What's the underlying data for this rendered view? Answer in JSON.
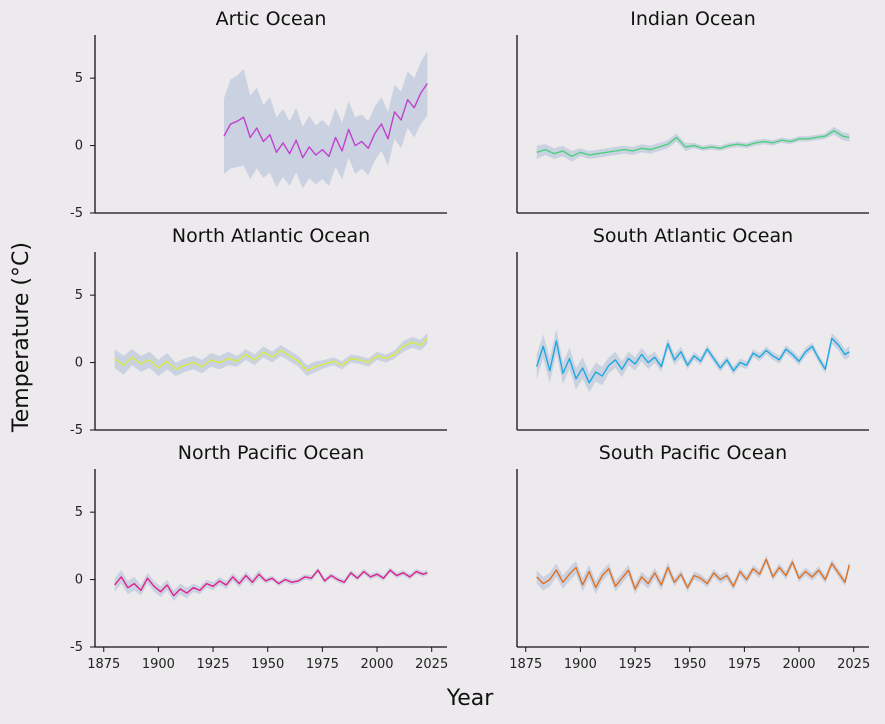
{
  "figure": {
    "xlabel": "Year",
    "ylabel": "Temperature (°C)",
    "background": "#ECEAEC",
    "band_color": "#B8C4DC",
    "xticks": [
      1875,
      1900,
      1925,
      1950,
      1975,
      2000,
      2025
    ],
    "yticks": [
      -5,
      0,
      5
    ]
  },
  "chart_data": [
    {
      "type": "line",
      "title": "Artic Ocean",
      "color": "#C040D0",
      "xlim": [
        1871,
        2032
      ],
      "ylim": [
        -5,
        8.2
      ],
      "series": [
        {
          "x": [
            1930,
            1933,
            1936,
            1939,
            1942,
            1945,
            1948,
            1951,
            1954,
            1957,
            1960,
            1963,
            1966,
            1969,
            1972,
            1975,
            1978,
            1981,
            1984,
            1987,
            1990,
            1993,
            1996,
            1999,
            2002,
            2005,
            2008,
            2011,
            2014,
            2017,
            2020,
            2023
          ],
          "y": [
            0.7,
            1.6,
            1.8,
            2.1,
            0.6,
            1.3,
            0.3,
            0.8,
            -0.5,
            0.2,
            -0.6,
            0.4,
            -0.9,
            -0.1,
            -0.7,
            -0.3,
            -0.8,
            0.6,
            -0.4,
            1.2,
            0.0,
            0.3,
            -0.2,
            0.9,
            1.6,
            0.5,
            2.5,
            1.9,
            3.4,
            2.8,
            3.9,
            4.6
          ],
          "band": [
            2.8,
            3.3,
            3.4,
            3.6,
            3.1,
            3.0,
            2.7,
            2.8,
            2.6,
            2.5,
            2.4,
            2.4,
            2.3,
            2.3,
            2.2,
            2.2,
            2.2,
            2.2,
            2.1,
            2.1,
            2.1,
            2.0,
            2.0,
            2.0,
            2.0,
            2.0,
            2.0,
            2.1,
            2.1,
            2.2,
            2.3,
            2.4
          ]
        }
      ]
    },
    {
      "type": "line",
      "title": "Indian Ocean",
      "color": "#4CD080",
      "xlim": [
        1871,
        2032
      ],
      "ylim": [
        -5,
        8.2
      ],
      "series": [
        {
          "x": [
            1880,
            1884,
            1888,
            1892,
            1896,
            1900,
            1904,
            1908,
            1912,
            1916,
            1920,
            1924,
            1928,
            1932,
            1936,
            1940,
            1944,
            1948,
            1952,
            1956,
            1960,
            1964,
            1968,
            1972,
            1976,
            1980,
            1984,
            1988,
            1992,
            1996,
            2000,
            2004,
            2008,
            2012,
            2016,
            2020,
            2023
          ],
          "y": [
            -0.5,
            -0.3,
            -0.6,
            -0.4,
            -0.8,
            -0.5,
            -0.7,
            -0.6,
            -0.5,
            -0.4,
            -0.3,
            -0.4,
            -0.2,
            -0.3,
            -0.1,
            0.1,
            0.6,
            -0.1,
            0.0,
            -0.2,
            -0.1,
            -0.2,
            0.0,
            0.1,
            0.0,
            0.2,
            0.3,
            0.2,
            0.4,
            0.3,
            0.5,
            0.5,
            0.6,
            0.7,
            1.1,
            0.7,
            0.6
          ],
          "band": [
            0.5,
            0.4,
            0.4,
            0.4,
            0.4,
            0.3,
            0.3,
            0.3,
            0.3,
            0.3,
            0.3,
            0.3,
            0.3,
            0.3,
            0.3,
            0.3,
            0.3,
            0.3,
            0.2,
            0.2,
            0.2,
            0.2,
            0.2,
            0.2,
            0.2,
            0.2,
            0.2,
            0.2,
            0.2,
            0.2,
            0.2,
            0.2,
            0.2,
            0.2,
            0.3,
            0.3,
            0.3
          ]
        }
      ]
    },
    {
      "type": "line",
      "title": "North Atlantic Ocean",
      "color": "#D8EC40",
      "xlim": [
        1871,
        2032
      ],
      "ylim": [
        -5,
        8.2
      ],
      "series": [
        {
          "x": [
            1880,
            1884,
            1888,
            1892,
            1896,
            1900,
            1904,
            1908,
            1912,
            1916,
            1920,
            1924,
            1928,
            1932,
            1936,
            1940,
            1944,
            1948,
            1952,
            1956,
            1960,
            1964,
            1968,
            1972,
            1976,
            1980,
            1984,
            1988,
            1992,
            1996,
            2000,
            2004,
            2008,
            2012,
            2016,
            2020,
            2023
          ],
          "y": [
            0.3,
            -0.2,
            0.4,
            -0.1,
            0.2,
            -0.4,
            0.1,
            -0.5,
            -0.2,
            0.0,
            -0.3,
            0.2,
            0.0,
            0.3,
            0.1,
            0.6,
            0.2,
            0.8,
            0.4,
            0.9,
            0.5,
            0.1,
            -0.6,
            -0.3,
            -0.1,
            0.1,
            -0.2,
            0.3,
            0.2,
            0.0,
            0.5,
            0.3,
            0.6,
            1.2,
            1.5,
            1.3,
            1.8
          ],
          "band": [
            0.7,
            0.7,
            0.6,
            0.6,
            0.6,
            0.6,
            0.6,
            0.5,
            0.5,
            0.5,
            0.5,
            0.5,
            0.5,
            0.5,
            0.4,
            0.4,
            0.4,
            0.4,
            0.4,
            0.4,
            0.4,
            0.4,
            0.4,
            0.4,
            0.3,
            0.3,
            0.3,
            0.3,
            0.3,
            0.3,
            0.3,
            0.3,
            0.3,
            0.4,
            0.4,
            0.4,
            0.4
          ]
        }
      ]
    },
    {
      "type": "line",
      "title": "South Atlantic Ocean",
      "color": "#1CA8E0",
      "xlim": [
        1871,
        2032
      ],
      "ylim": [
        -5,
        8.2
      ],
      "series": [
        {
          "x": [
            1880,
            1883,
            1886,
            1889,
            1892,
            1895,
            1898,
            1901,
            1904,
            1907,
            1910,
            1913,
            1916,
            1919,
            1922,
            1925,
            1928,
            1931,
            1934,
            1937,
            1940,
            1943,
            1946,
            1949,
            1952,
            1955,
            1958,
            1961,
            1964,
            1967,
            1970,
            1973,
            1976,
            1979,
            1982,
            1985,
            1988,
            1991,
            1994,
            1997,
            2000,
            2003,
            2006,
            2009,
            2012,
            2015,
            2018,
            2021,
            2023
          ],
          "y": [
            -0.3,
            1.2,
            -0.6,
            1.6,
            -0.8,
            0.3,
            -1.2,
            -0.4,
            -1.5,
            -0.7,
            -1.0,
            -0.2,
            0.2,
            -0.5,
            0.3,
            -0.1,
            0.6,
            0.0,
            0.4,
            -0.3,
            1.4,
            0.2,
            0.8,
            -0.2,
            0.5,
            0.1,
            1.0,
            0.3,
            -0.4,
            0.2,
            -0.6,
            0.0,
            -0.2,
            0.7,
            0.4,
            0.9,
            0.5,
            0.2,
            1.0,
            0.6,
            0.1,
            0.8,
            1.2,
            0.3,
            -0.5,
            1.8,
            1.3,
            0.6,
            0.8
          ],
          "band": [
            0.9,
            0.9,
            0.9,
            0.9,
            0.8,
            0.8,
            0.8,
            0.8,
            0.7,
            0.7,
            0.7,
            0.6,
            0.6,
            0.6,
            0.5,
            0.5,
            0.5,
            0.5,
            0.4,
            0.4,
            0.4,
            0.4,
            0.4,
            0.3,
            0.3,
            0.3,
            0.3,
            0.3,
            0.3,
            0.3,
            0.3,
            0.3,
            0.3,
            0.3,
            0.3,
            0.3,
            0.3,
            0.3,
            0.3,
            0.3,
            0.3,
            0.3,
            0.3,
            0.3,
            0.3,
            0.4,
            0.4,
            0.4,
            0.4
          ]
        }
      ]
    },
    {
      "type": "line",
      "title": "North Pacific Ocean",
      "color": "#E0208C",
      "xlim": [
        1871,
        2032
      ],
      "ylim": [
        -5,
        8.2
      ],
      "series": [
        {
          "x": [
            1880,
            1883,
            1886,
            1889,
            1892,
            1895,
            1898,
            1901,
            1904,
            1907,
            1910,
            1913,
            1916,
            1919,
            1922,
            1925,
            1928,
            1931,
            1934,
            1937,
            1940,
            1943,
            1946,
            1949,
            1952,
            1955,
            1958,
            1961,
            1964,
            1967,
            1970,
            1973,
            1976,
            1979,
            1982,
            1985,
            1988,
            1991,
            1994,
            1997,
            2000,
            2003,
            2006,
            2009,
            2012,
            2015,
            2018,
            2021,
            2023
          ],
          "y": [
            -0.4,
            0.2,
            -0.6,
            -0.3,
            -0.8,
            0.1,
            -0.5,
            -0.9,
            -0.4,
            -1.2,
            -0.7,
            -1.0,
            -0.6,
            -0.8,
            -0.3,
            -0.5,
            -0.1,
            -0.4,
            0.2,
            -0.3,
            0.3,
            -0.2,
            0.4,
            -0.1,
            0.1,
            -0.3,
            0.0,
            -0.2,
            -0.1,
            0.2,
            0.1,
            0.7,
            -0.1,
            0.3,
            0.0,
            -0.2,
            0.5,
            0.1,
            0.6,
            0.2,
            0.4,
            0.1,
            0.7,
            0.3,
            0.5,
            0.2,
            0.6,
            0.4,
            0.5
          ],
          "band": [
            0.5,
            0.5,
            0.5,
            0.5,
            0.4,
            0.4,
            0.4,
            0.4,
            0.4,
            0.4,
            0.4,
            0.4,
            0.3,
            0.3,
            0.3,
            0.3,
            0.3,
            0.3,
            0.3,
            0.3,
            0.3,
            0.3,
            0.3,
            0.2,
            0.2,
            0.2,
            0.2,
            0.2,
            0.2,
            0.2,
            0.2,
            0.2,
            0.2,
            0.2,
            0.2,
            0.2,
            0.2,
            0.2,
            0.2,
            0.2,
            0.2,
            0.2,
            0.2,
            0.2,
            0.2,
            0.2,
            0.2,
            0.2,
            0.2
          ]
        }
      ]
    },
    {
      "type": "line",
      "title": "South Pacific Ocean",
      "color": "#E07020",
      "xlim": [
        1871,
        2032
      ],
      "ylim": [
        -5,
        8.2
      ],
      "series": [
        {
          "x": [
            1880,
            1883,
            1886,
            1889,
            1892,
            1895,
            1898,
            1901,
            1904,
            1907,
            1910,
            1913,
            1916,
            1919,
            1922,
            1925,
            1928,
            1931,
            1934,
            1937,
            1940,
            1943,
            1946,
            1949,
            1952,
            1955,
            1958,
            1961,
            1964,
            1967,
            1970,
            1973,
            1976,
            1979,
            1982,
            1985,
            1988,
            1991,
            1994,
            1997,
            2000,
            2003,
            2006,
            2009,
            2012,
            2015,
            2018,
            2021,
            2023
          ],
          "y": [
            0.2,
            -0.3,
            0.0,
            0.7,
            -0.2,
            0.4,
            0.9,
            -0.4,
            0.6,
            -0.6,
            0.3,
            0.8,
            -0.5,
            0.1,
            0.7,
            -0.7,
            0.2,
            -0.3,
            0.5,
            -0.4,
            0.9,
            -0.2,
            0.4,
            -0.6,
            0.3,
            0.1,
            -0.3,
            0.5,
            0.0,
            0.3,
            -0.5,
            0.6,
            0.0,
            0.8,
            0.4,
            1.5,
            0.2,
            0.9,
            0.3,
            1.3,
            0.1,
            0.6,
            0.2,
            0.7,
            0.0,
            1.2,
            0.5,
            -0.2,
            1.1
          ],
          "band": [
            0.5,
            0.5,
            0.5,
            0.5,
            0.5,
            0.5,
            0.5,
            0.5,
            0.5,
            0.5,
            0.4,
            0.4,
            0.4,
            0.4,
            0.4,
            0.4,
            0.4,
            0.4,
            0.4,
            0.4,
            0.4,
            0.3,
            0.3,
            0.3,
            0.3,
            0.3,
            0.3,
            0.3,
            0.3,
            0.3,
            0.3,
            0.3,
            0.3,
            0.3,
            0.3,
            0.3,
            0.3,
            0.3,
            0.3,
            0.3,
            0.3,
            0.3,
            0.3,
            0.3,
            0.3,
            0.3,
            0.3,
            0.3,
            0.3
          ]
        }
      ]
    }
  ]
}
